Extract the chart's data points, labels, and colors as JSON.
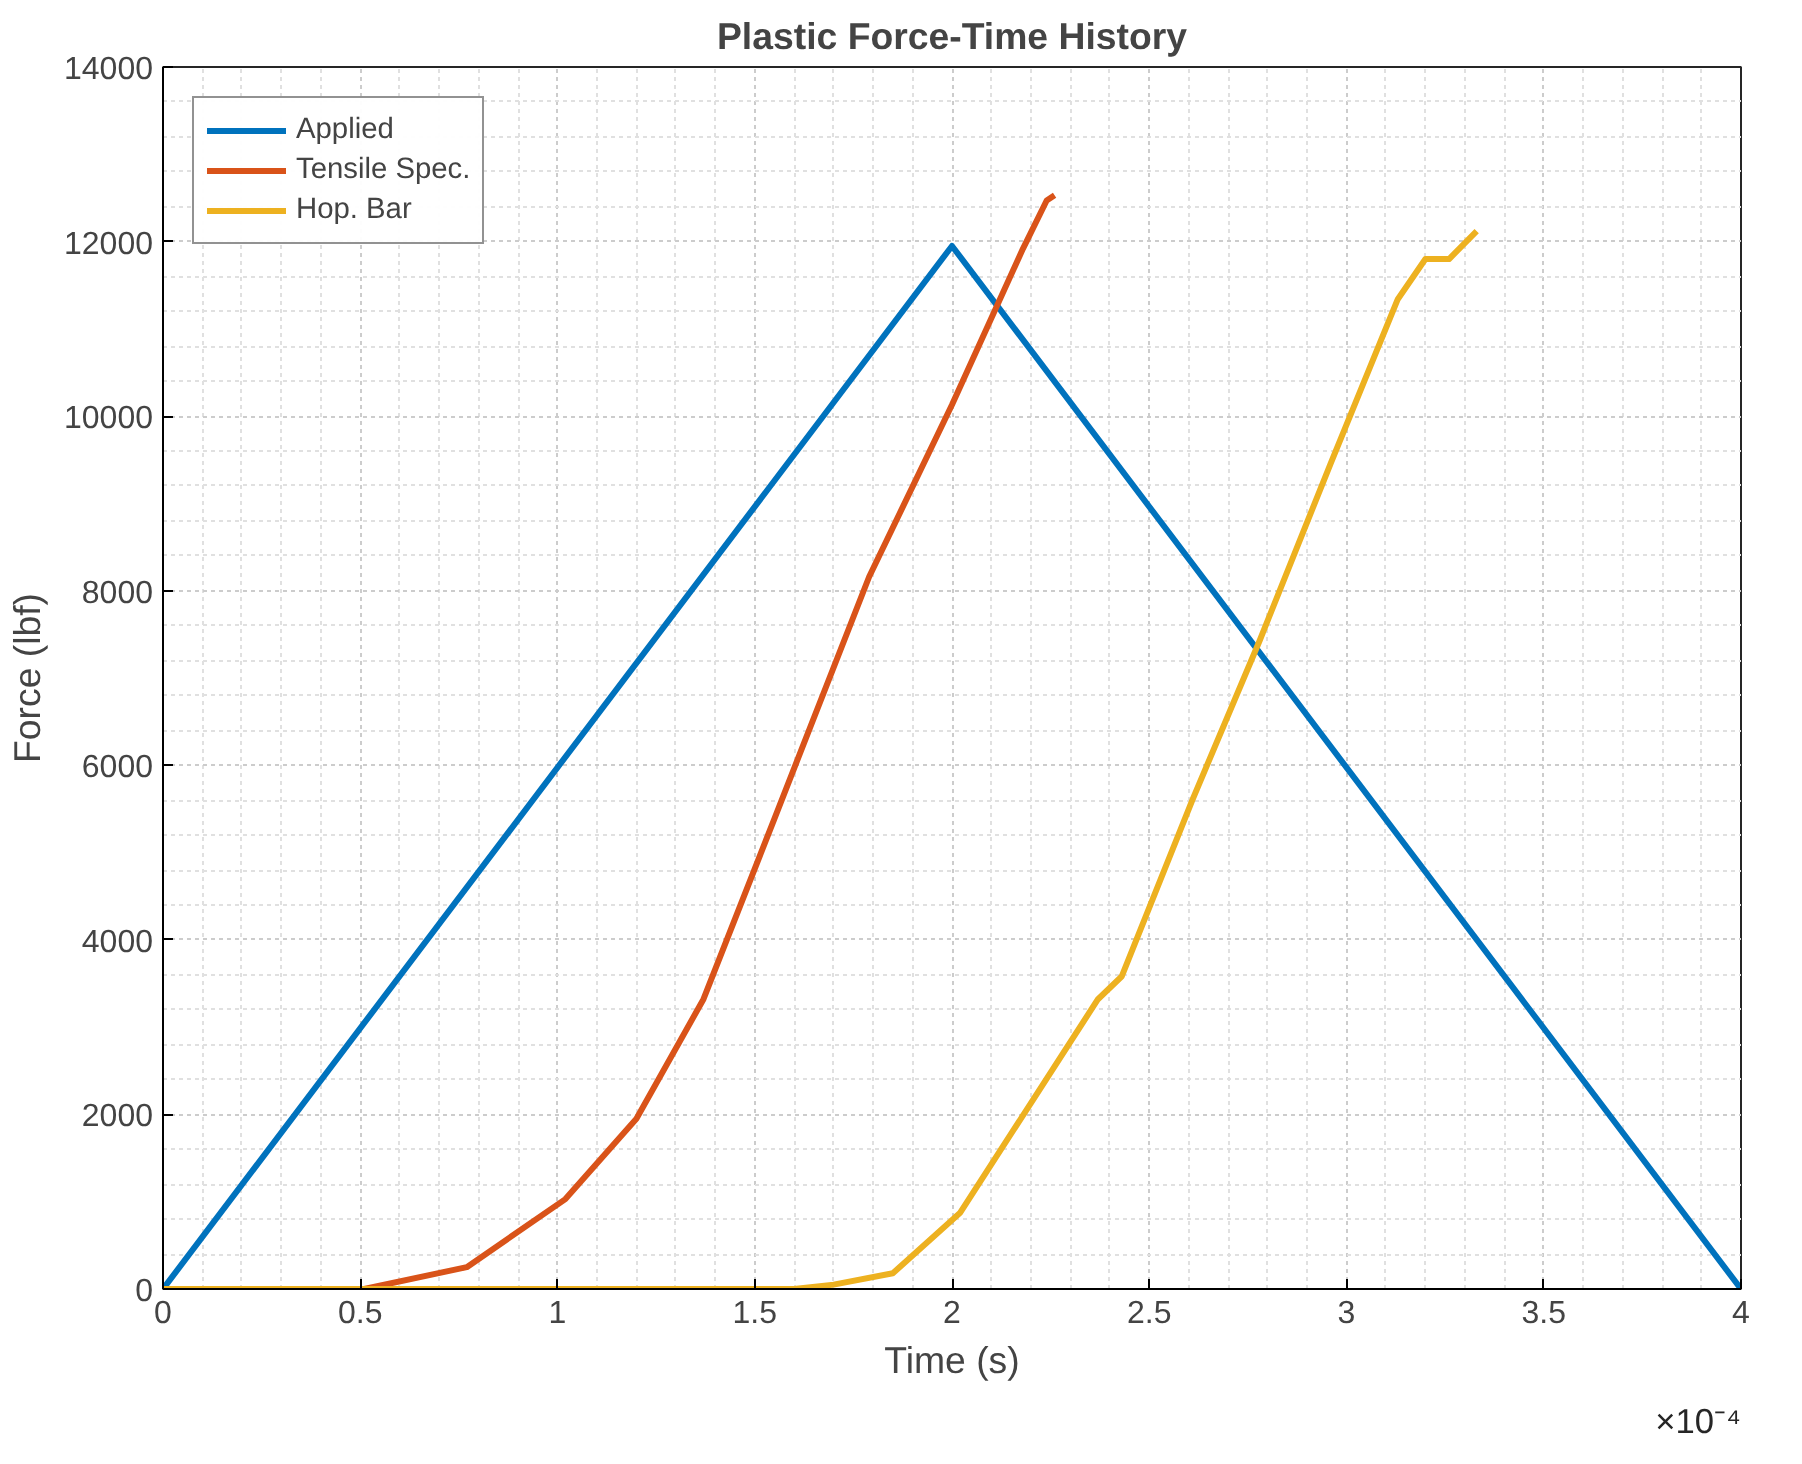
{
  "chart_data": {
    "type": "line",
    "title": "Plastic Force-Time History",
    "xlabel": "Time (s)",
    "ylabel": "Force (lbf)",
    "annotations": [
      "×10⁻⁴"
    ],
    "xlim": [
      0,
      4
    ],
    "xticks": [
      0,
      0.5,
      1,
      1.5,
      2,
      2.5,
      3,
      3.5,
      4
    ],
    "ylim": [
      0,
      14000
    ],
    "yticks": [
      0,
      2000,
      4000,
      6000,
      8000,
      10000,
      12000,
      14000
    ],
    "grid": true,
    "legend": "top left",
    "line_style": "solid",
    "marker": "none",
    "series": [
      {
        "name": "Applied",
        "color": "#0072bd",
        "x": [
          0,
          2,
          4
        ],
        "values": [
          0,
          11950,
          0
        ]
      },
      {
        "name": "Tensile Spec.",
        "color": "#d95319",
        "x": [
          0,
          0.51,
          0.77,
          1.02,
          1.2,
          1.37,
          1.55,
          1.79,
          2.0,
          2.18,
          2.24,
          2.26
        ],
        "values": [
          0,
          0,
          250,
          1030,
          1950,
          3320,
          5390,
          8160,
          10130,
          11920,
          12470,
          12530
        ]
      },
      {
        "name": "Hop. Bar",
        "color": "#edb120",
        "x": [
          0,
          1.6,
          1.7,
          1.85,
          2.02,
          2.37,
          2.43,
          2.61,
          2.78,
          2.96,
          3.13,
          3.2,
          3.26,
          3.33
        ],
        "values": [
          0,
          0,
          50,
          180,
          870,
          3320,
          3580,
          5610,
          7430,
          9460,
          11340,
          11800,
          11800,
          12120
        ]
      }
    ]
  }
}
